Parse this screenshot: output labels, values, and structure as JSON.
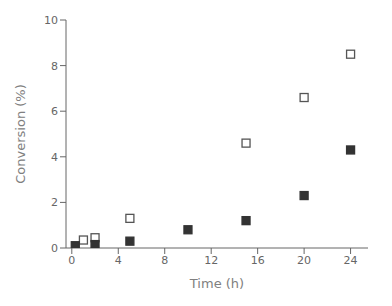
{
  "chart_data": {
    "type": "scatter",
    "xlabel": "Time (h)",
    "ylabel": "Conversion (%)",
    "xlim": [
      -0.5,
      25.5
    ],
    "ylim": [
      0,
      10
    ],
    "xticks": [
      0,
      4,
      8,
      12,
      16,
      20,
      24
    ],
    "yticks": [
      0,
      2,
      4,
      6,
      8,
      10
    ],
    "grid": false,
    "series": [
      {
        "color": "#555555",
        "marker": "square_open",
        "x": [
          1,
          2,
          5,
          15,
          20,
          24
        ],
        "values": [
          0.35,
          0.45,
          1.3,
          4.6,
          6.6,
          8.5
        ]
      },
      {
        "color": "#333333",
        "marker": "square",
        "x": [
          0.3,
          2,
          5,
          10,
          15,
          20,
          24
        ],
        "values": [
          0.1,
          0.15,
          0.3,
          0.8,
          1.2,
          2.3,
          4.3
        ]
      }
    ]
  }
}
